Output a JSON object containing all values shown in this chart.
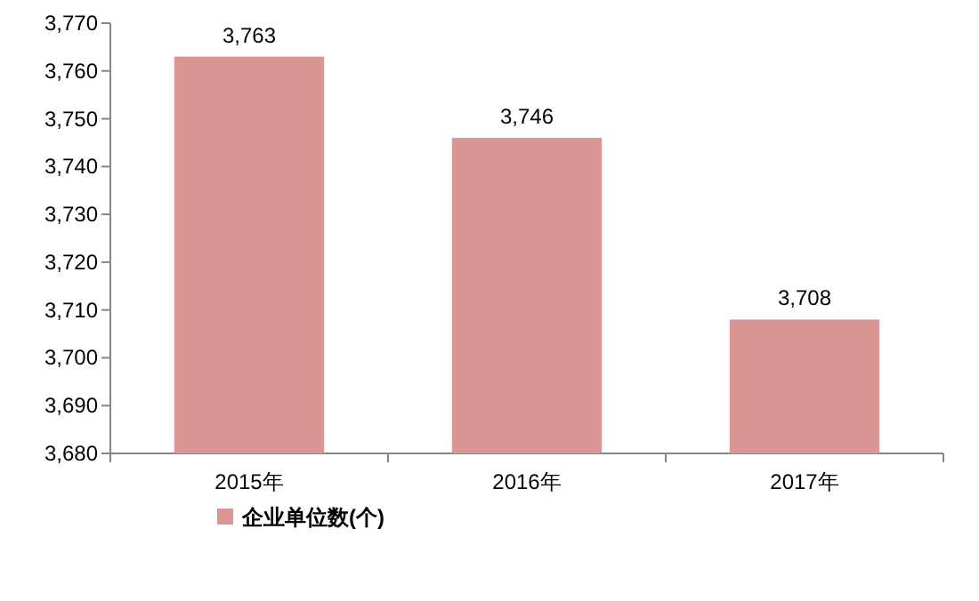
{
  "chart_data": {
    "type": "bar",
    "categories": [
      "2015年",
      "2016年",
      "2017年"
    ],
    "series": [
      {
        "name": "企业单位数(个)",
        "color": "#d99694",
        "values": [
          3763,
          3746,
          3708
        ],
        "value_labels": [
          "3,763",
          "3,746",
          "3,708"
        ]
      }
    ],
    "ylim": [
      3680,
      3770
    ],
    "yticks": [
      {
        "value": 3680,
        "label": "3,680"
      },
      {
        "value": 3690,
        "label": "3,690"
      },
      {
        "value": 3700,
        "label": "3,700"
      },
      {
        "value": 3710,
        "label": "3,710"
      },
      {
        "value": 3720,
        "label": "3,720"
      },
      {
        "value": 3730,
        "label": "3,730"
      },
      {
        "value": 3740,
        "label": "3,740"
      },
      {
        "value": 3750,
        "label": "3,750"
      },
      {
        "value": 3760,
        "label": "3,760"
      },
      {
        "value": 3770,
        "label": "3,770"
      }
    ],
    "legend": "bottom left",
    "grid": false
  }
}
